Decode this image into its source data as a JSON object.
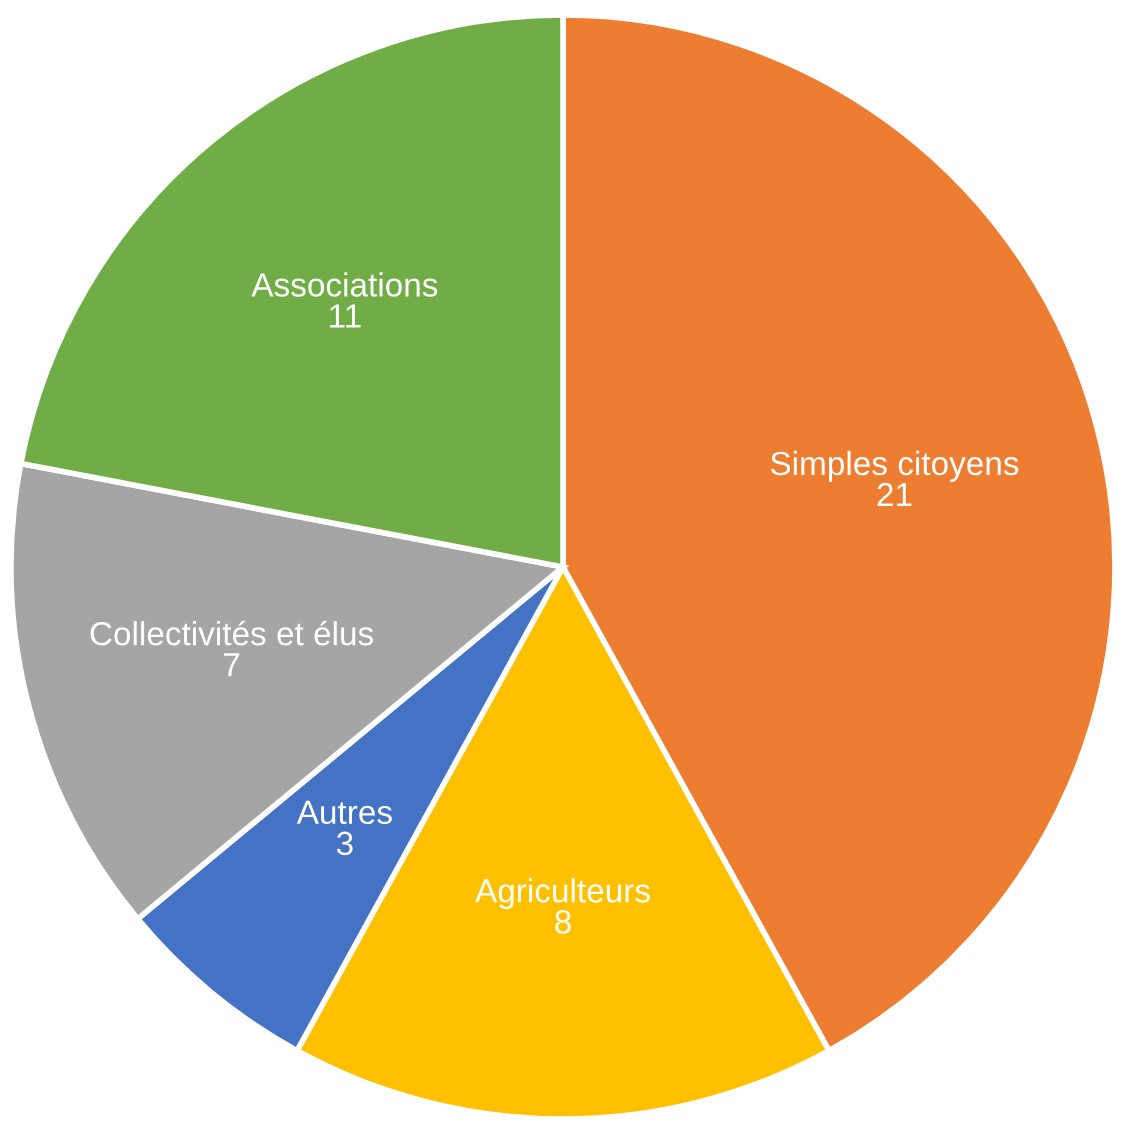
{
  "chart_data": {
    "type": "pie",
    "categories": [
      "Simples citoyens",
      "Agriculteurs",
      "Autres",
      "Collectivités et élus",
      "Associations"
    ],
    "values": [
      21,
      8,
      3,
      7,
      11
    ],
    "colors": [
      "#ed7d31",
      "#ffc000",
      "#4472c4",
      "#a5a5a5",
      "#70ad47"
    ],
    "data_labels": true,
    "legend": false
  }
}
